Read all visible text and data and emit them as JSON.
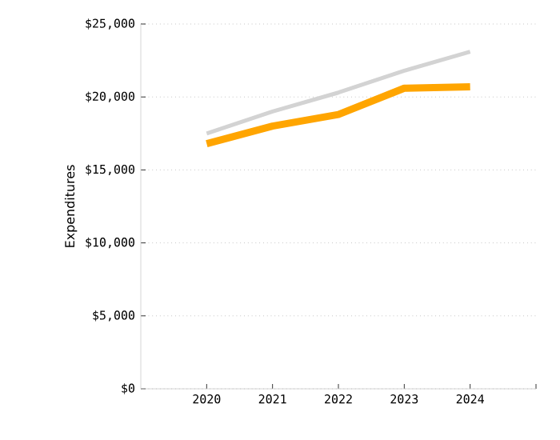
{
  "chart_data": {
    "type": "line",
    "ylabel": "Expenditures",
    "x": [
      2020,
      2021,
      2022,
      2023,
      2024
    ],
    "series": [
      {
        "color": "#d3d3d3",
        "values": [
          17500,
          19000,
          20300,
          21800,
          23100
        ]
      },
      {
        "color": "#ffa500",
        "values": [
          16800,
          18000,
          18800,
          20600,
          20700
        ]
      }
    ],
    "xlim": [
      2019,
      2025
    ],
    "xticks": [
      2020,
      2021,
      2022,
      2023,
      2024,
      {
        "value": 2025,
        "label": null
      }
    ],
    "ylim": [
      0,
      25000
    ],
    "yticks": [
      {
        "value": 0,
        "label": "$0"
      },
      {
        "value": 5000,
        "label": "$5,000"
      },
      {
        "value": 10000,
        "label": "$10,000"
      },
      {
        "value": 15000,
        "label": "$15,000"
      },
      {
        "value": 20000,
        "label": "$20,000"
      },
      {
        "value": 25000,
        "label": "$25,000"
      }
    ],
    "grid": "y",
    "marker": "none",
    "line_style": "solid"
  }
}
